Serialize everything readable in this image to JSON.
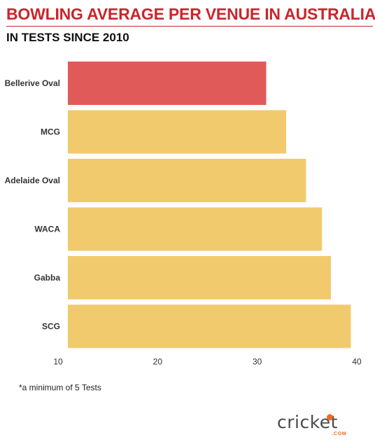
{
  "title": "BOWLING AVERAGE PER VENUE IN AUSTRALIA",
  "subtitle": "IN TESTS SINCE 2010",
  "footnote": "*a minimum of 5 Tests",
  "logo": {
    "text": "cricket",
    "suffix": ".COM",
    "accent_color": "#f06b23"
  },
  "colors": {
    "title": "#c8262b",
    "highlight_bar": "#e05a5a",
    "default_bar": "#f0ca6c"
  },
  "chart_data": {
    "type": "bar",
    "orientation": "horizontal",
    "title": "BOWLING AVERAGE PER VENUE IN AUSTRALIA",
    "subtitle": "IN TESTS SINCE 2010",
    "categories": [
      "Bellerive Oval",
      "MCG",
      "Adelaide Oval",
      "WACA",
      "Gabba",
      "SCG"
    ],
    "values": [
      30.9,
      32.9,
      34.9,
      36.5,
      37.4,
      39.4
    ],
    "highlight": "Bellerive Oval",
    "xlabel": "",
    "ylabel": "",
    "xlim": [
      10,
      40
    ],
    "xticks": [
      10,
      20,
      30,
      40
    ],
    "grid": false
  }
}
